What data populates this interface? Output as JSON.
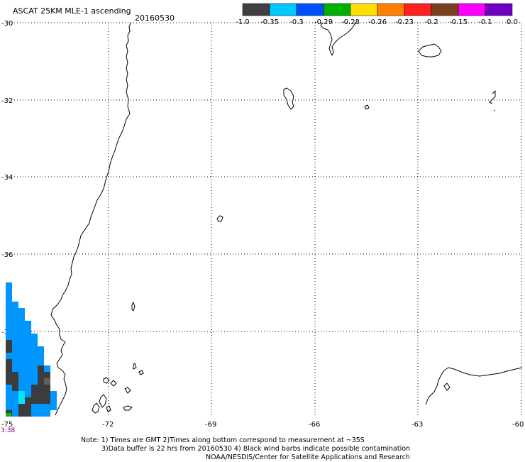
{
  "header": {
    "title": "ASCAT 25KM MLE-1 ascending",
    "date": "20160530"
  },
  "colorbar": {
    "colors": [
      "#404040",
      "#00c8ff",
      "#0050ff",
      "#00b000",
      "#ffe000",
      "#ff8000",
      "#ff2020",
      "#7a4020",
      "#ff00ff",
      "#7000c0"
    ],
    "ticks": [
      "-1.0",
      "-0.35",
      "-0.3",
      "-0.29",
      "-0.28",
      "-0.26",
      "-0.23",
      "-0.2",
      "-0.15",
      "-0.1",
      "0.0"
    ]
  },
  "axes": {
    "lat_labels": [
      "-30",
      "-32",
      "-34",
      "-36",
      "-38"
    ],
    "lon_labels": [
      "-75",
      "-72",
      "-69",
      "-66",
      "-63",
      "-60"
    ]
  },
  "time_label": "3:38",
  "notes": {
    "line1": "Note: 1) Times are GMT 2)Times along bottom correspond to measurement at ~35S",
    "line2": "3)Data buffer is 22 hrs from 20160530 4) Black wind barbs indicate possible contamination",
    "line3": "NOAA/NESDIS/Center for Satellite Applications and Research"
  }
}
